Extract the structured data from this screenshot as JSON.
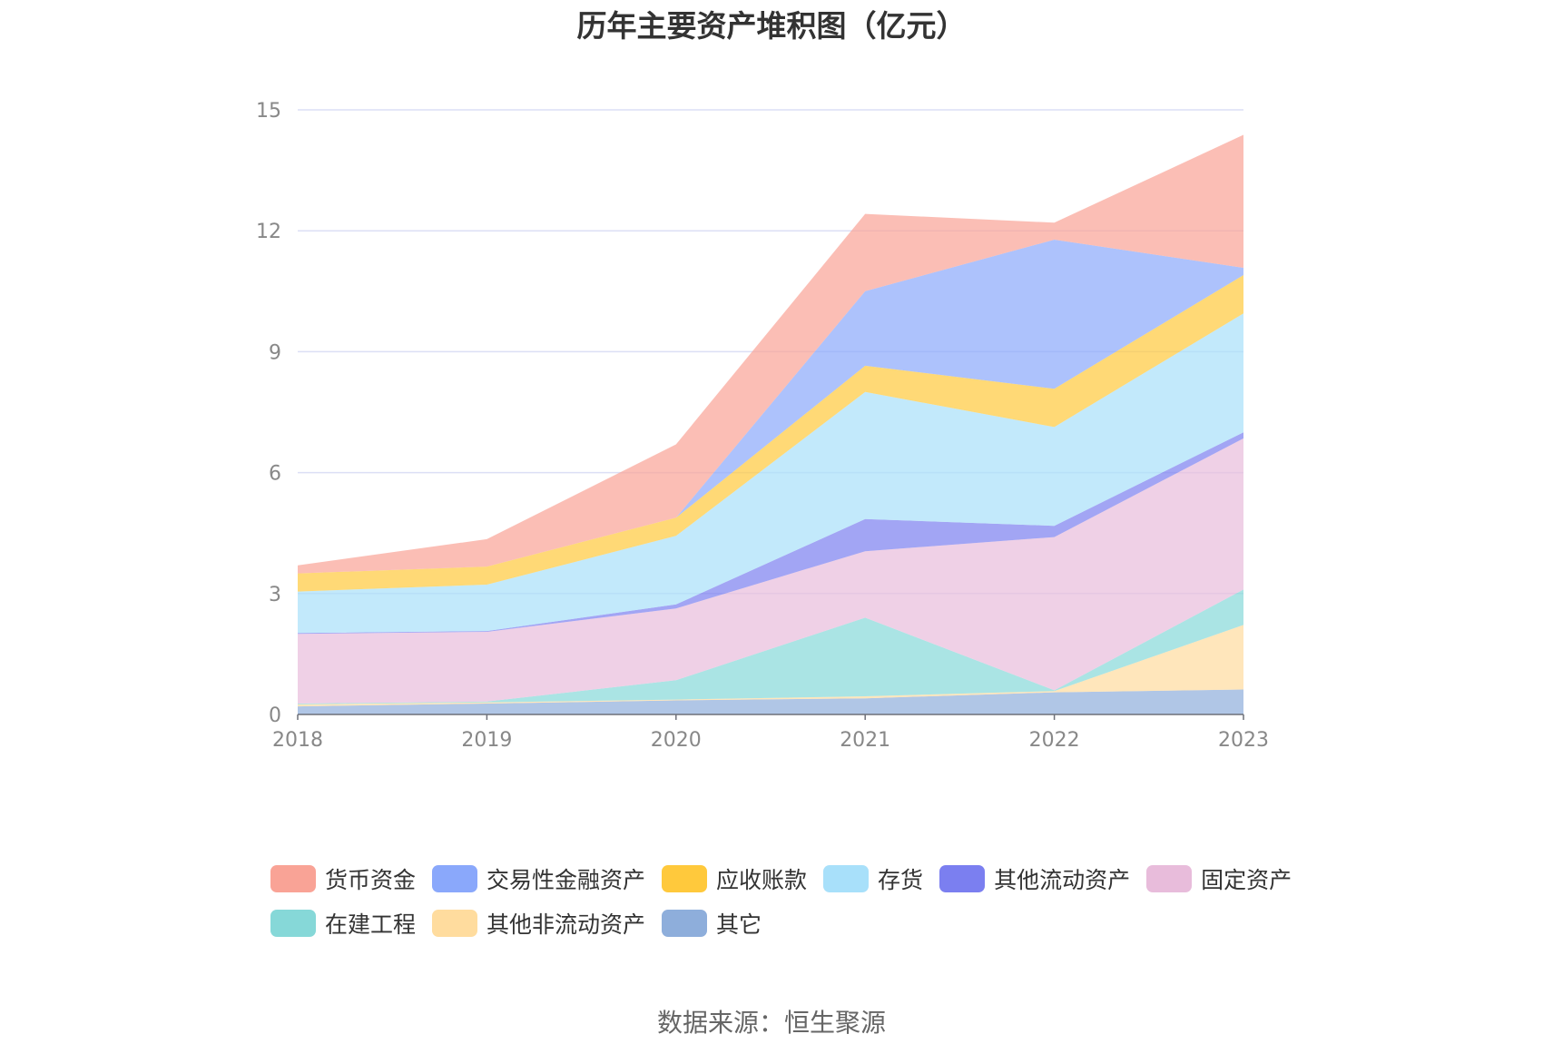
{
  "chart_data": {
    "type": "area",
    "stacked": true,
    "title": "历年主要资产堆积图（亿元）",
    "x": [
      "2018",
      "2019",
      "2020",
      "2021",
      "2022",
      "2023"
    ],
    "ylim": [
      0,
      15
    ],
    "yticks": [
      0,
      3,
      6,
      9,
      12,
      15
    ],
    "grid": true,
    "legend_position": "bottom",
    "series": [
      {
        "name": "其它",
        "color": "#8eaedb",
        "values": [
          0.2,
          0.27,
          0.35,
          0.4,
          0.55,
          0.62
        ]
      },
      {
        "name": "其他非流动资产",
        "color": "#ffdc9e",
        "values": [
          0.05,
          0.03,
          0.02,
          0.05,
          0.03,
          1.6
        ]
      },
      {
        "name": "在建工程",
        "color": "#86d8d8",
        "values": [
          0.02,
          0.02,
          0.48,
          1.95,
          0.02,
          0.88
        ]
      },
      {
        "name": "固定资产",
        "color": "#e8bcdb",
        "values": [
          1.73,
          1.73,
          1.78,
          1.65,
          3.8,
          3.75
        ]
      },
      {
        "name": "其他流动资产",
        "color": "#7b7ff0",
        "values": [
          0.02,
          0.02,
          0.1,
          0.8,
          0.28,
          0.15
        ]
      },
      {
        "name": "存货",
        "color": "#a8e0fa",
        "values": [
          1.03,
          1.15,
          1.7,
          3.15,
          2.45,
          2.95
        ]
      },
      {
        "name": "应收账款",
        "color": "#ffc93c",
        "values": [
          0.45,
          0.45,
          0.45,
          0.65,
          0.95,
          0.95
        ]
      },
      {
        "name": "交易性金融资产",
        "color": "#8aa8fb",
        "values": [
          0,
          0,
          0,
          1.85,
          3.7,
          0.18
        ]
      },
      {
        "name": "货币资金",
        "color": "#f9a396",
        "values": [
          0.2,
          0.68,
          1.82,
          1.92,
          0.42,
          3.3
        ]
      }
    ]
  },
  "legend_order": [
    "货币资金",
    "交易性金融资产",
    "应收账款",
    "存货",
    "其他流动资产",
    "固定资产",
    "在建工程",
    "其他非流动资产",
    "其它"
  ],
  "source": "数据来源：恒生聚源"
}
